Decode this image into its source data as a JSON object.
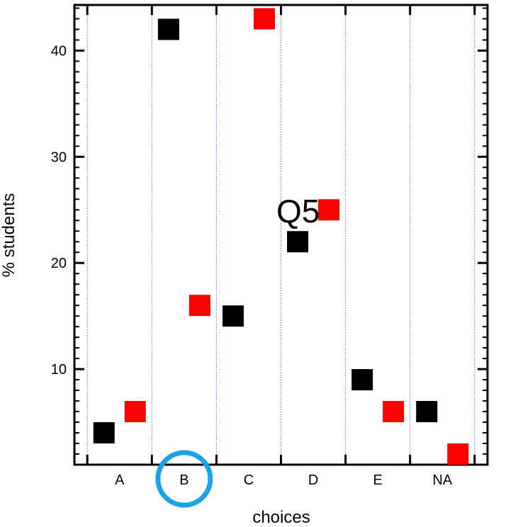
{
  "chart_data": {
    "type": "scatter",
    "title": "",
    "annotation": "Q5",
    "xlabel": "choices",
    "ylabel": "% students",
    "categories": [
      "A",
      "B",
      "C",
      "D",
      "E",
      "NA"
    ],
    "highlighted_category": "B",
    "highlight_color": "#1aa3e8",
    "yticks": [
      10,
      20,
      30,
      40
    ],
    "ylim": [
      1,
      44.3
    ],
    "grid": "vertical dotted lines between categories",
    "series": [
      {
        "color": "#000000",
        "values": [
          4,
          42,
          15,
          22,
          9,
          6
        ]
      },
      {
        "color": "#ff0000",
        "values": [
          6,
          16,
          43,
          25,
          6,
          2
        ]
      }
    ]
  }
}
